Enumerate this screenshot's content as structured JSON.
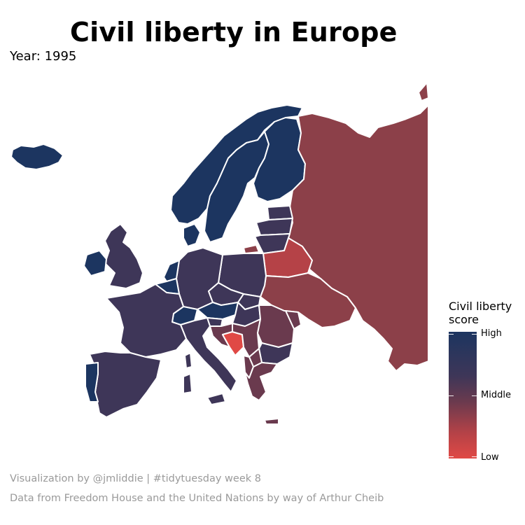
{
  "title": "Civil liberty in Europe",
  "subtitle": "Year: 1995",
  "legend": {
    "title_line1": "Civil liberty",
    "title_line2": "score",
    "labels": [
      "High",
      "Middle",
      "Low"
    ]
  },
  "colors": {
    "high": "#1c3560",
    "mid_high": "#3e3658",
    "middle": "#6a3a4e",
    "mid_low": "#8c4049",
    "low": "#e04945",
    "border": "#ffffff"
  },
  "caption": {
    "line1": "Visualization by @jmliddie | #tidytuesday week 8",
    "line2": "Data from Freedom House and the United Nations by way of Arthur Cheib"
  }
}
